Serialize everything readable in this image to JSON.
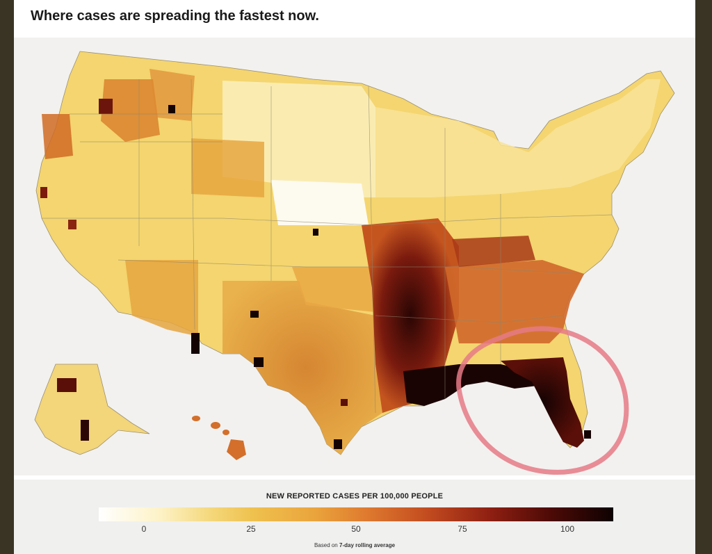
{
  "title": "Where cases are spreading the fastest now.",
  "legend": {
    "title": "NEW REPORTED CASES PER 100,000 PEOPLE",
    "ticks": [
      "0",
      "25",
      "50",
      "75",
      "100"
    ],
    "note_prefix": "Based on",
    "note_bold": "7-day rolling average",
    "scale_colors": [
      "#ffffff",
      "#f4d779",
      "#eaa43c",
      "#c24b1f",
      "#8f1f12",
      "#0e0202"
    ]
  },
  "map": {
    "annotation": "pink hand-drawn circle around Florida",
    "annotation_color": "#e67a86",
    "highlight_regions": [
      "Florida",
      "Louisiana",
      "Mississippi",
      "Arkansas",
      "Gulf Coast"
    ]
  }
}
